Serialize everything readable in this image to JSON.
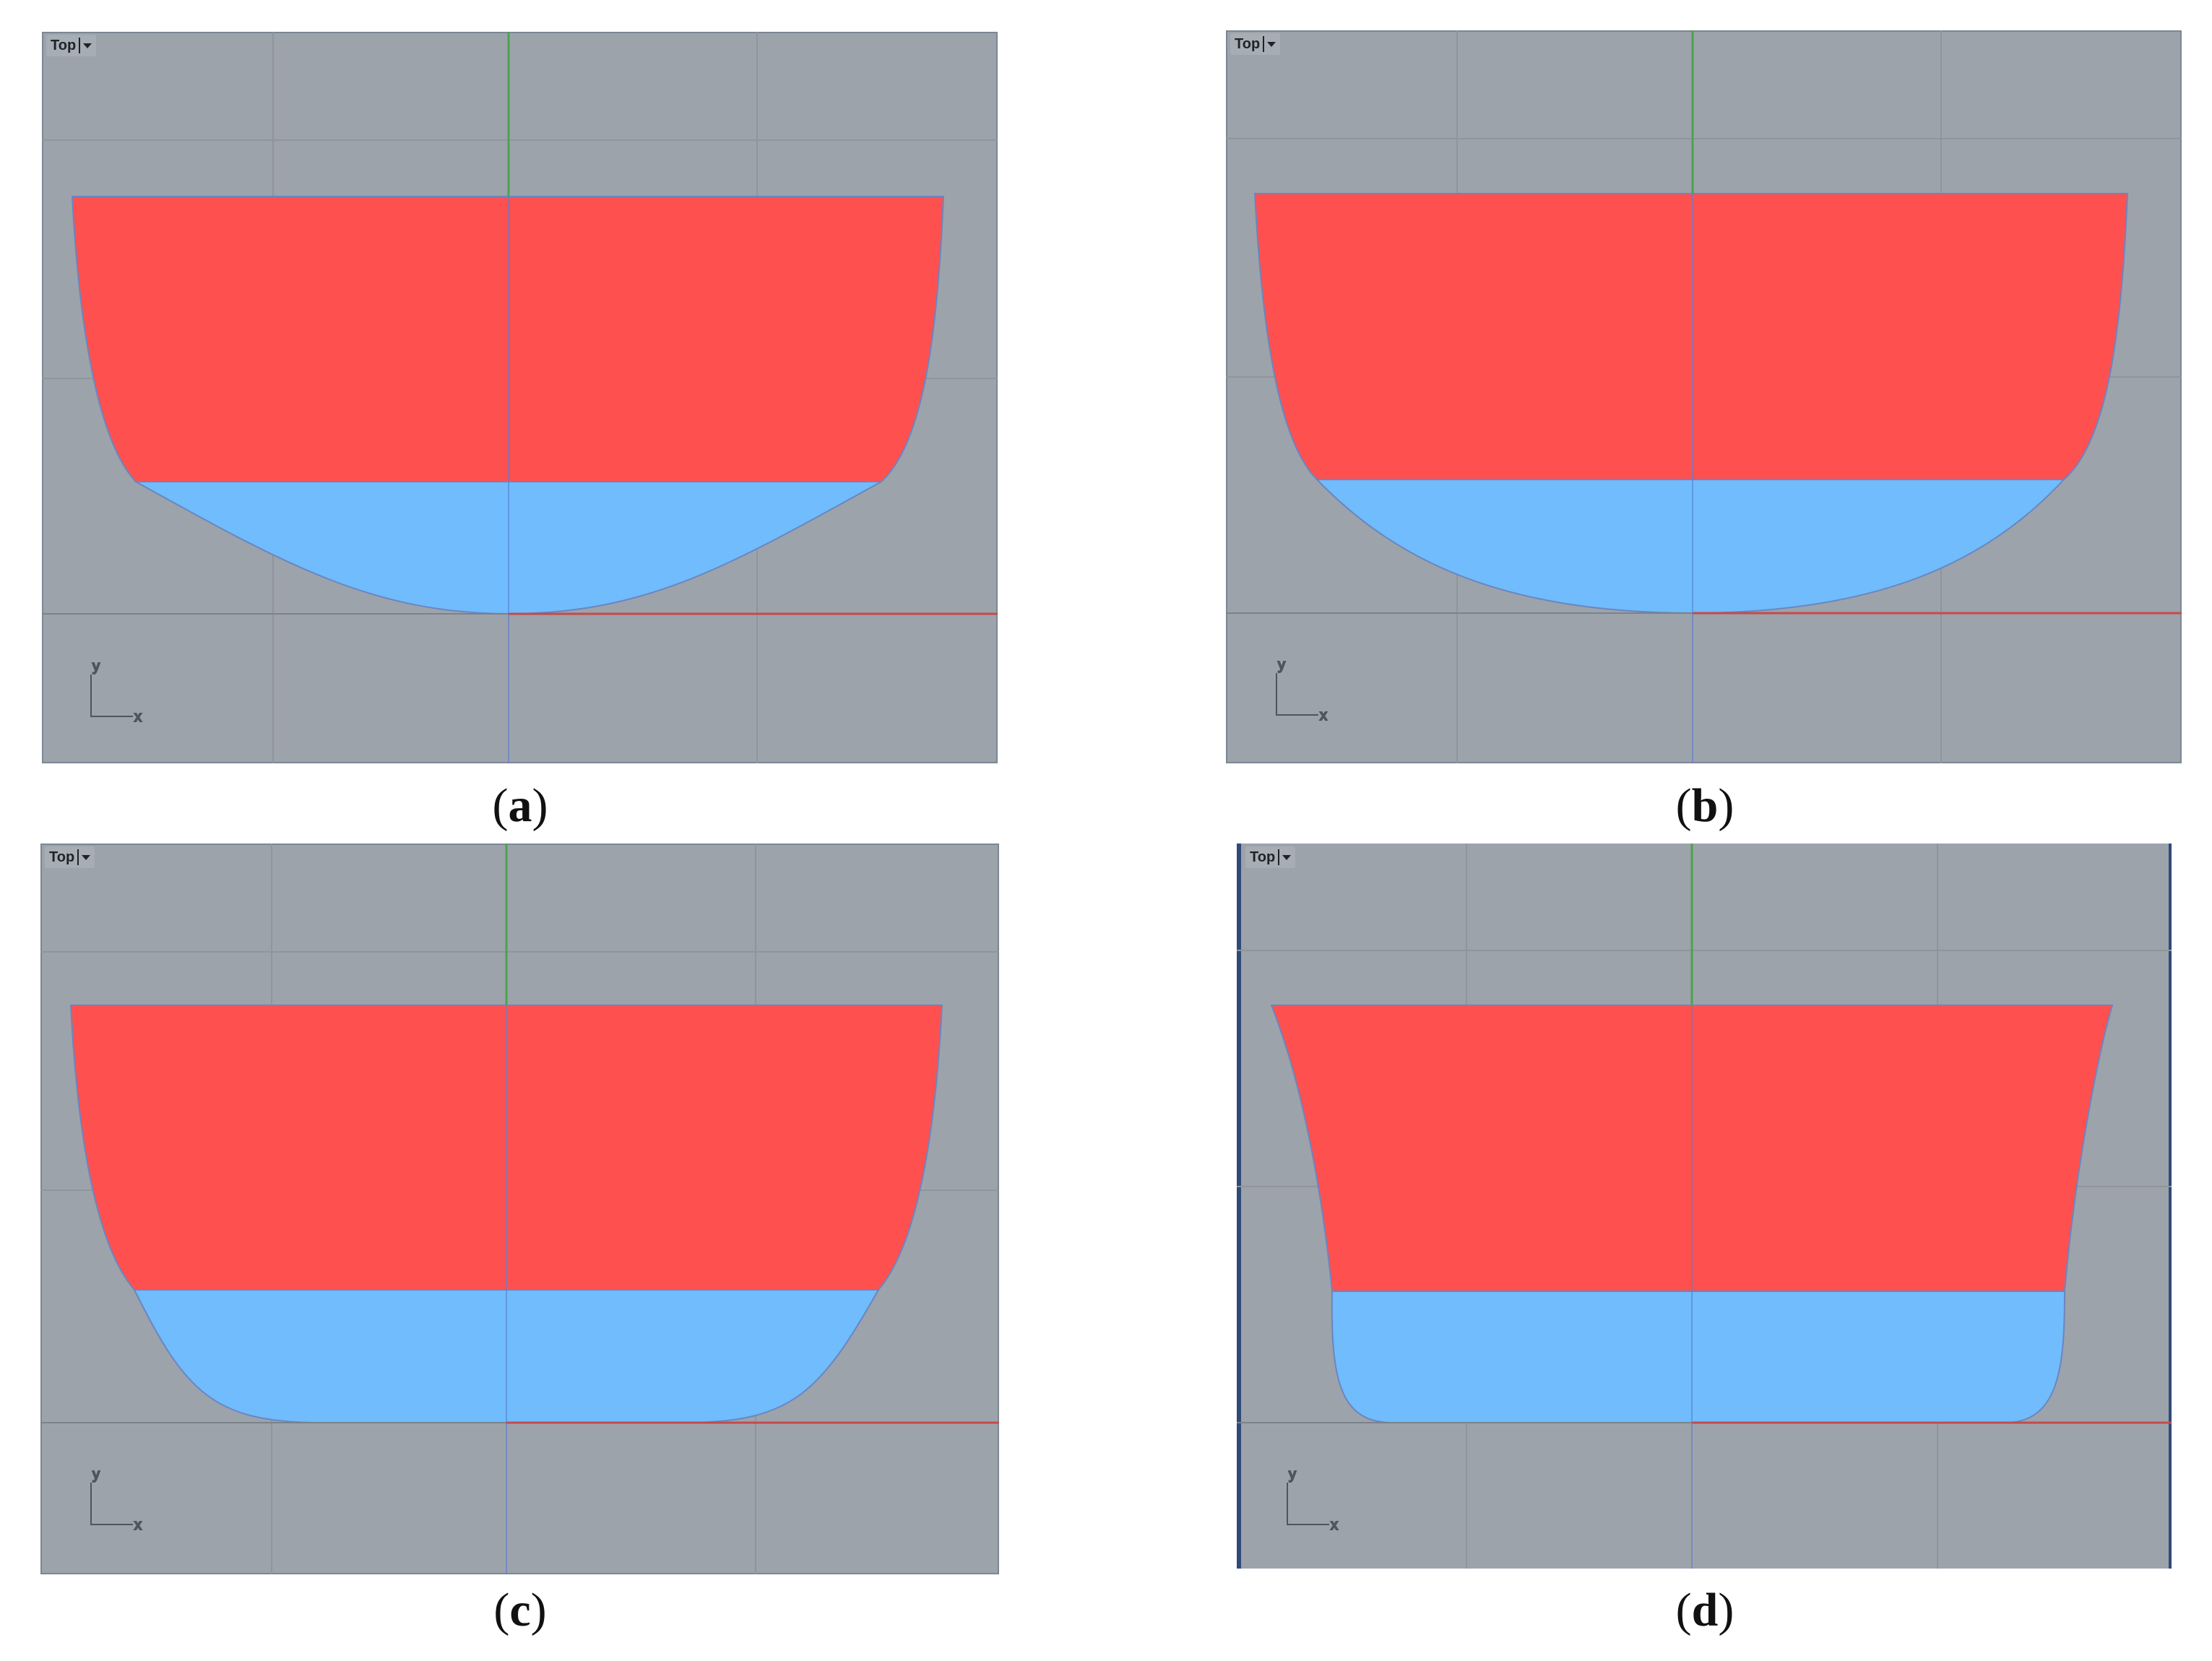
{
  "colors": {
    "viewport_bg": "#9da3ab",
    "grid": "#8e959d",
    "green_axis": "#4aa44a",
    "red_axis": "#c64a4a",
    "upper_region": "#ff5050",
    "lower_region": "#70bcfc",
    "outline": "#6a86c0"
  },
  "panels": [
    {
      "id": "a",
      "viewport_label": "Top",
      "caption": "a",
      "icon": "dropdown-chevron-icon"
    },
    {
      "id": "b",
      "viewport_label": "Top",
      "caption": "b",
      "icon": "dropdown-chevron-icon"
    },
    {
      "id": "c",
      "viewport_label": "Top",
      "caption": "c",
      "icon": "dropdown-chevron-icon"
    },
    {
      "id": "d",
      "viewport_label": "Top",
      "caption": "d",
      "icon": "dropdown-chevron-icon"
    }
  ],
  "axis_icon": {
    "y_label": "y",
    "x_label": "x",
    "icon": "xy-axes-icon"
  },
  "caption_open": "(",
  "caption_close": ")"
}
